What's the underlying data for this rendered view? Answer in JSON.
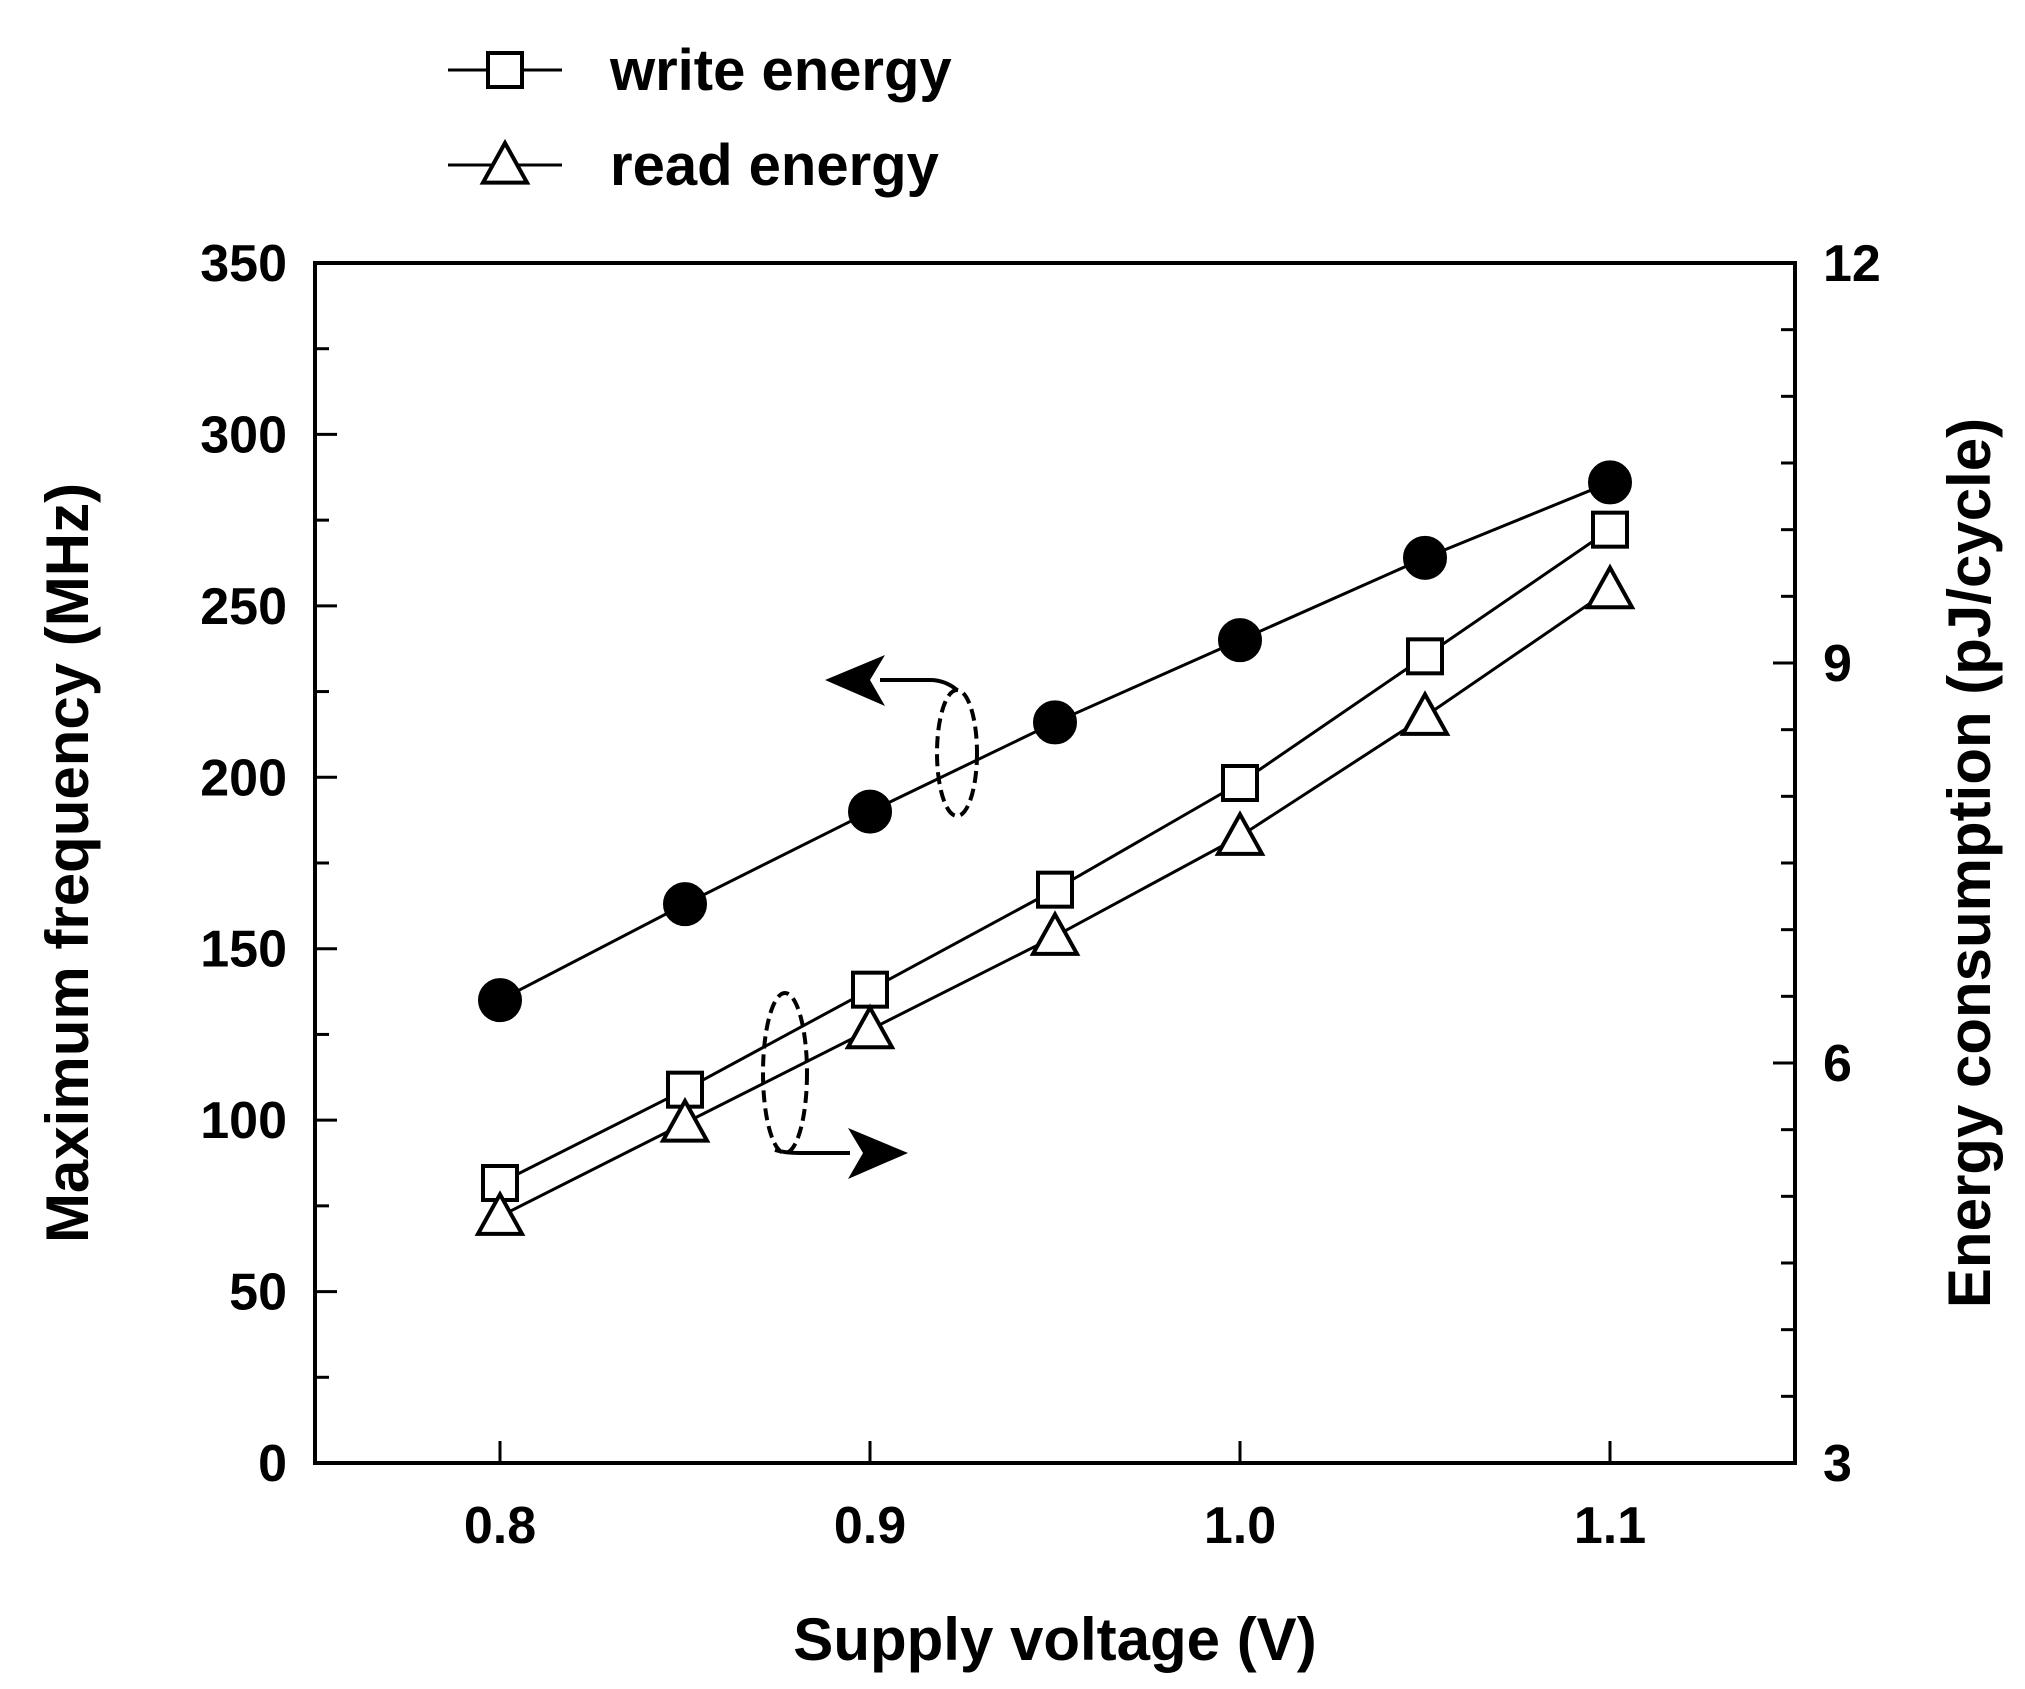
{
  "chart_data": {
    "type": "line",
    "title": "",
    "xlabel": "Supply voltage  (V)",
    "ylabel_left": "Maximum frequency  (MHz)",
    "ylabel_right": "Energy consumption  (pJ/cycle)",
    "xlim": [
      0.75,
      1.15
    ],
    "ylim_left": [
      0,
      350
    ],
    "ylim_right": [
      3,
      12
    ],
    "x_ticks": [
      0.8,
      0.9,
      1.0,
      1.1
    ],
    "x_tick_labels": [
      "0.8",
      "0.9",
      "1.0",
      "1.1"
    ],
    "y_left_ticks": [
      0,
      50,
      100,
      150,
      200,
      250,
      300,
      350
    ],
    "y_left_tick_labels": [
      "0",
      "50",
      "100",
      "150",
      "200",
      "250",
      "300",
      "350"
    ],
    "y_right_ticks": [
      3,
      6,
      9,
      12
    ],
    "y_right_tick_labels": [
      "3",
      "6",
      "9",
      "12"
    ],
    "x": [
      0.8,
      0.85,
      0.9,
      0.95,
      1.0,
      1.05,
      1.1
    ],
    "series": [
      {
        "name": "Maximum frequency",
        "axis": "left",
        "marker": "filled-circle",
        "values": [
          135,
          163,
          190,
          216,
          240,
          264,
          286
        ]
      },
      {
        "name": "write energy",
        "axis": "right",
        "marker": "open-square",
        "values": [
          5.1,
          5.8,
          6.55,
          7.3,
          8.1,
          9.05,
          10.0
        ]
      },
      {
        "name": "read energy",
        "axis": "right",
        "marker": "open-triangle",
        "values": [
          4.85,
          5.55,
          6.25,
          6.95,
          7.7,
          8.6,
          9.55
        ]
      }
    ],
    "legend": {
      "position": "top-left",
      "entries": [
        "write energy",
        "read energy"
      ]
    },
    "annotations": [
      {
        "kind": "arrow-left",
        "meaning": "circles refer to left axis"
      },
      {
        "kind": "arrow-right",
        "meaning": "squares and triangles refer to right axis"
      }
    ]
  }
}
